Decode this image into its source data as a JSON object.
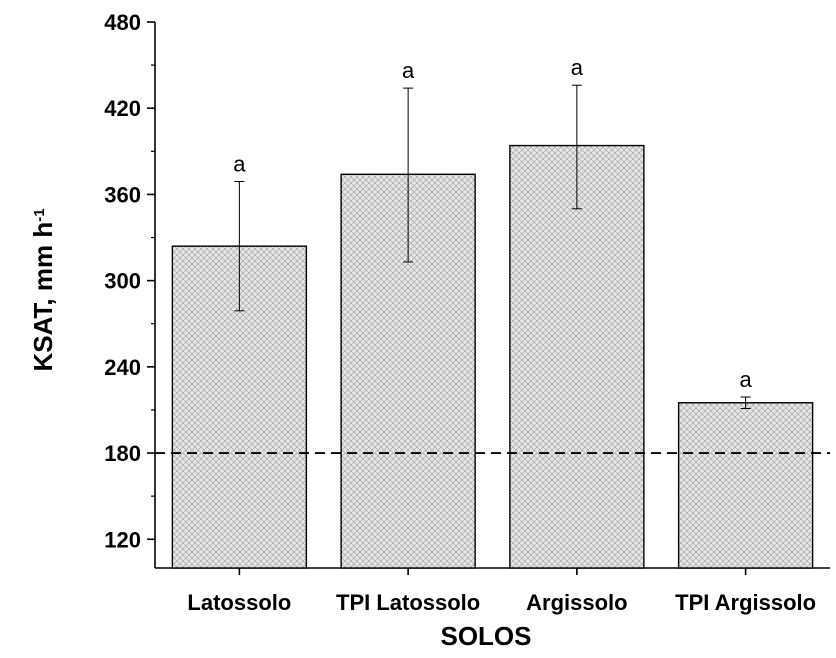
{
  "chart_data": {
    "type": "bar",
    "categories": [
      "Latossolo",
      "TPI Latossolo",
      "Argissolo",
      "TPI Argissolo"
    ],
    "values": [
      324,
      374,
      394,
      215
    ],
    "error_low": [
      279,
      313,
      350,
      211
    ],
    "error_high": [
      369,
      434,
      436,
      219
    ],
    "significance_labels": [
      "a",
      "a",
      "a",
      "a"
    ],
    "reference_line": 180,
    "xlabel": "SOLOS",
    "ylabel": "KSAT, mm h",
    "ylabel_superscript": "-1",
    "ylim": [
      100,
      480
    ],
    "yticks": [
      120,
      180,
      240,
      300,
      360,
      420,
      480
    ],
    "bar_fill": "#d9d9d9",
    "bar_pattern": "crosshatch",
    "grid": false
  }
}
